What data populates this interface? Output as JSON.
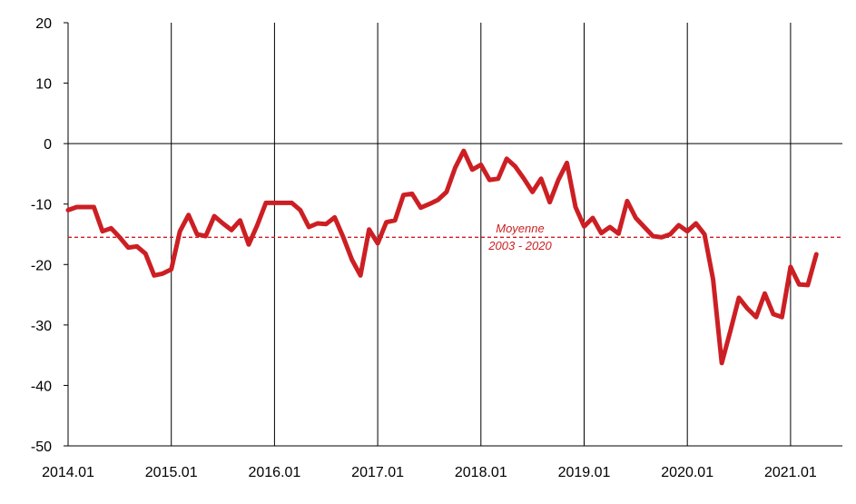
{
  "chart_data": {
    "type": "line",
    "x_start": "2014.01",
    "x_step_months": 1,
    "x_tick_labels": [
      "2014.01",
      "2015.01",
      "2016.01",
      "2017.01",
      "2018.01",
      "2019.01",
      "2020.01",
      "2021.01"
    ],
    "y_tick_labels": [
      "20",
      "10",
      "0",
      "-10",
      "-20",
      "-30",
      "-40",
      "-50"
    ],
    "ylim": [
      -50,
      20
    ],
    "grid": "vertical lines at each year, horizontal line at zero",
    "line_color": "#cc1f24",
    "series": [
      {
        "values": [
          -11,
          -10.5,
          -10.5,
          -10.5,
          -14.5,
          -14,
          -15.5,
          -17.2,
          -17,
          -18.2,
          -21.8,
          -21.5,
          -20.8,
          -14.5,
          -11.8,
          -15,
          -15.3,
          -12,
          -13.2,
          -14.3,
          -12.7,
          -16.7,
          -13.5,
          -9.8,
          -9.8,
          -9.8,
          -9.8,
          -11,
          -13.8,
          -13.2,
          -13.3,
          -12.2,
          -15.5,
          -19.2,
          -21.8,
          -14.2,
          -16.5,
          -13,
          -12.7,
          -8.5,
          -8.3,
          -10.6,
          -10,
          -9.3,
          -8,
          -4,
          -1.2,
          -4.3,
          -3.5,
          -6,
          -5.8,
          -2.5,
          -3.8,
          -5.8,
          -8,
          -5.8,
          -9.7,
          -6,
          -3.2,
          -10.5,
          -13.7,
          -12.3,
          -14.8,
          -13.8,
          -14.9,
          -9.5,
          -12.3,
          -13.8,
          -15.3,
          -15.5,
          -15,
          -13.5,
          -14.5,
          -13.2,
          -15,
          -22.5,
          -36.3,
          -31,
          -25.5,
          -27.3,
          -28.7,
          -24.8,
          -28.2,
          -28.7,
          -20.4,
          -23.3,
          -23.4,
          -18.3
        ]
      }
    ],
    "reference_line": {
      "value": -15.5,
      "color": "#cc1f24",
      "label_line1": "Moyenne",
      "label_line2": "2003 - 2020"
    }
  }
}
